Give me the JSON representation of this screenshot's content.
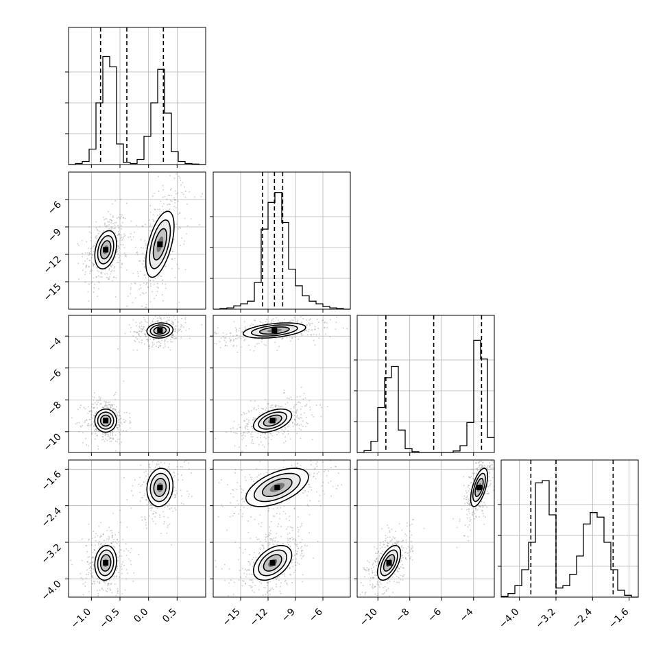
{
  "chart_data": {
    "type": "corner",
    "parameters": [
      {
        "ticks": [
          -1.0,
          -0.5,
          0.0,
          0.5
        ],
        "tick_labels": [
          "−1.0",
          "−0.5",
          "0.0",
          "0.5"
        ],
        "range": [
          -1.4,
          1.0
        ]
      },
      {
        "ticks": [
          -15,
          -12,
          -9,
          -6
        ],
        "tick_labels": [
          "−15",
          "−12",
          "−9",
          "−6"
        ],
        "range": [
          -18.0,
          -3.0
        ]
      },
      {
        "ticks": [
          -10,
          -8,
          -6,
          -4
        ],
        "tick_labels": [
          "−10",
          "−8",
          "−6",
          "−4"
        ],
        "range": [
          -11.3,
          -2.7
        ]
      },
      {
        "ticks": [
          -4.0,
          -3.2,
          -2.4,
          -1.6
        ],
        "tick_labels": [
          "−4.0",
          "−3.2",
          "−2.4",
          "−1.6"
        ],
        "range": [
          -4.4,
          -1.4
        ]
      }
    ],
    "quantiles": [
      [
        -0.84,
        -0.38,
        0.26
      ],
      [
        -12.6,
        -11.3,
        -10.4
      ],
      [
        -9.5,
        -6.5,
        -3.5
      ],
      [
        -3.75,
        -3.2,
        -1.95
      ]
    ],
    "histograms": [
      {
        "bin_edges": [
          -1.4,
          -1.28,
          -1.16,
          -1.04,
          -0.92,
          -0.8,
          -0.68,
          -0.56,
          -0.44,
          -0.32,
          -0.2,
          -0.08,
          0.04,
          0.16,
          0.28,
          0.4,
          0.52,
          0.64,
          0.76,
          0.88,
          1.0
        ],
        "counts": [
          0,
          2,
          6,
          30,
          120,
          210,
          190,
          40,
          4,
          2,
          10,
          55,
          120,
          185,
          100,
          25,
          6,
          2,
          1,
          0
        ],
        "ymax": 240
      },
      {
        "bin_edges": [
          -18.0,
          -17.25,
          -16.5,
          -15.75,
          -15.0,
          -14.25,
          -13.5,
          -12.75,
          -12.0,
          -11.25,
          -10.5,
          -9.75,
          -9.0,
          -8.25,
          -7.5,
          -6.75,
          -6.0,
          -5.25,
          -4.5,
          -3.75,
          -3.0
        ],
        "counts": [
          0,
          1,
          2,
          5,
          8,
          12,
          40,
          120,
          160,
          175,
          130,
          60,
          35,
          20,
          12,
          8,
          4,
          2,
          1,
          0
        ],
        "ymax": 185
      },
      {
        "bin_edges": [
          -11.3,
          -10.87,
          -10.44,
          -10.01,
          -9.58,
          -9.15,
          -8.72,
          -8.29,
          -7.86,
          -7.43,
          -7.0,
          -6.57,
          -6.14,
          -5.71,
          -5.28,
          -4.85,
          -4.42,
          -3.99,
          -3.56,
          -3.13,
          -2.7
        ],
        "counts": [
          0,
          5,
          30,
          120,
          200,
          230,
          60,
          10,
          2,
          0,
          0,
          0,
          0,
          0,
          4,
          18,
          80,
          300,
          250,
          40
        ],
        "ymax": 330
      },
      {
        "bin_edges": [
          -4.4,
          -4.25,
          -4.1,
          -3.95,
          -3.8,
          -3.65,
          -3.5,
          -3.35,
          -3.2,
          -3.05,
          -2.9,
          -2.75,
          -2.6,
          -2.45,
          -2.3,
          -2.15,
          -2.0,
          -1.85,
          -1.7,
          -1.55,
          -1.4
        ],
        "counts": [
          2,
          8,
          25,
          60,
          120,
          250,
          255,
          180,
          20,
          25,
          50,
          90,
          160,
          185,
          175,
          120,
          60,
          15,
          4,
          0
        ],
        "ymax": 270
      }
    ],
    "modes": [
      [
        {
          "mean": [
            -0.75,
            -11.5
          ],
          "sd": [
            0.1,
            1.1
          ],
          "rho": 0.3,
          "w": 0.55
        },
        {
          "mean": [
            0.2,
            -10.9
          ],
          "sd": [
            0.13,
            1.9
          ],
          "rho": 0.55,
          "w": 0.45
        }
      ],
      [
        {
          "mean": [
            -0.75,
            -9.3
          ],
          "sd": [
            0.1,
            0.38
          ],
          "rho": 0.0,
          "w": 0.55
        },
        {
          "mean": [
            0.2,
            -3.65
          ],
          "sd": [
            0.12,
            0.25
          ],
          "rho": 0.1,
          "w": 0.45
        }
      ],
      [
        {
          "mean": [
            -11.5,
            -9.3
          ],
          "sd": [
            1.1,
            0.38
          ],
          "rho": 0.45,
          "w": 0.55
        },
        {
          "mean": [
            -11.3,
            -3.65
          ],
          "sd": [
            1.8,
            0.25
          ],
          "rho": 0.4,
          "w": 0.45
        }
      ],
      [
        {
          "mean": [
            -0.75,
            -3.65
          ],
          "sd": [
            0.1,
            0.2
          ],
          "rho": 0.1,
          "w": 0.55
        },
        {
          "mean": [
            0.2,
            -2.0
          ],
          "sd": [
            0.12,
            0.22
          ],
          "rho": 0.1,
          "w": 0.45
        }
      ],
      [
        {
          "mean": [
            -11.5,
            -3.65
          ],
          "sd": [
            1.1,
            0.2
          ],
          "rho": 0.45,
          "w": 0.55
        },
        {
          "mean": [
            -11.0,
            -2.0
          ],
          "sd": [
            1.8,
            0.22
          ],
          "rho": 0.55,
          "w": 0.45
        }
      ],
      [
        {
          "mean": [
            -9.3,
            -3.65
          ],
          "sd": [
            0.38,
            0.2
          ],
          "rho": 0.55,
          "w": 0.55
        },
        {
          "mean": [
            -3.65,
            -2.0
          ],
          "sd": [
            0.28,
            0.22
          ],
          "rho": 0.6,
          "w": 0.45
        }
      ]
    ],
    "grid": true
  }
}
